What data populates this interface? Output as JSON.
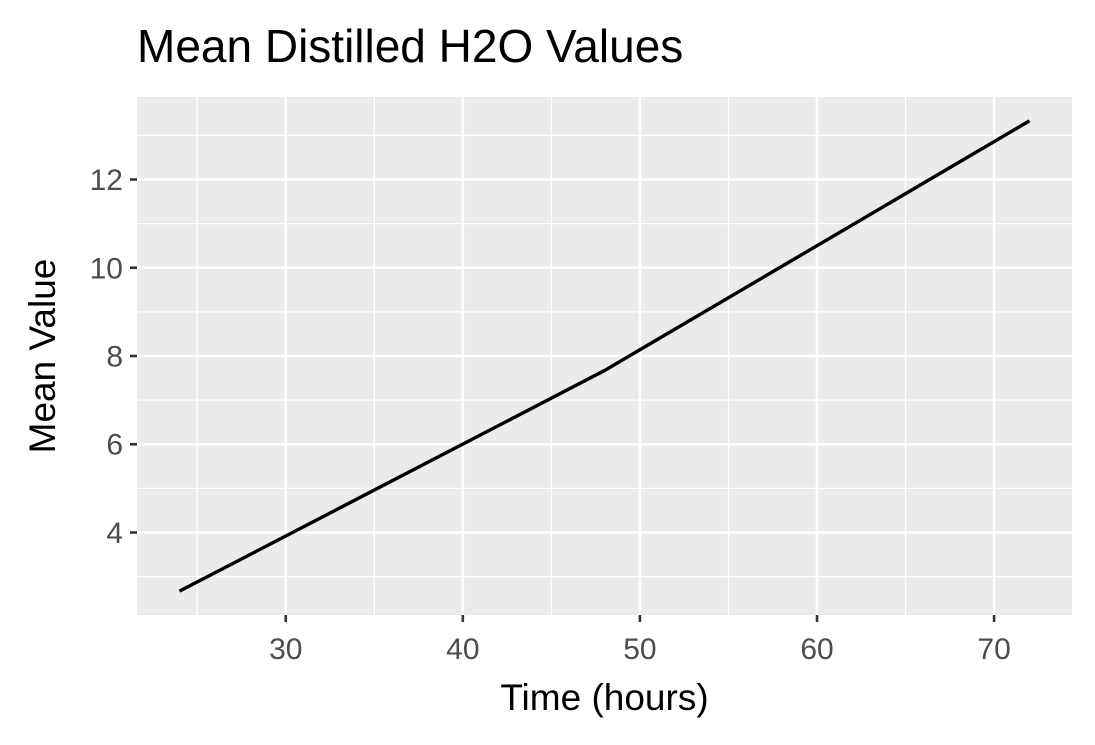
{
  "chart_data": {
    "type": "line",
    "title": "Mean Distilled H2O Values",
    "xlabel": "Time (hours)",
    "ylabel": "Mean Value",
    "xlim": [
      21.6,
      74.4
    ],
    "ylim": [
      2.13,
      13.87
    ],
    "x_major_ticks": [
      30,
      40,
      50,
      60,
      70
    ],
    "x_minor_ticks": [
      25,
      35,
      45,
      55,
      65
    ],
    "y_major_ticks": [
      4,
      6,
      8,
      10,
      12
    ],
    "y_minor_ticks": [
      3,
      5,
      7,
      9,
      11,
      13
    ],
    "x_tick_labels": [
      "30",
      "40",
      "50",
      "60",
      "70"
    ],
    "y_tick_labels": [
      "4",
      "6",
      "8",
      "10",
      "12"
    ],
    "grid": true,
    "legend": "none",
    "series": [
      {
        "x": [
          24,
          48,
          72
        ],
        "y": [
          2.67,
          7.67,
          13.33
        ]
      }
    ],
    "colors": {
      "panel_background": "#ebebeb",
      "grid": "#ffffff",
      "line": "#000000",
      "tick_label": "#4d4d4d",
      "tick_mark": "#333333"
    }
  }
}
